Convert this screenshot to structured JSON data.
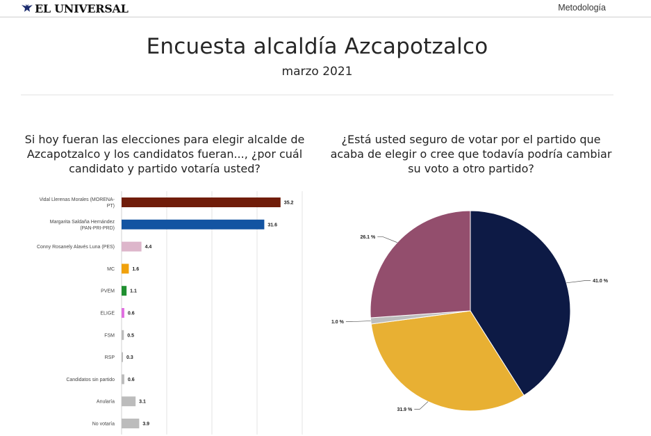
{
  "header": {
    "logo_text": "EL UNIVERSAL",
    "metodologia_link": "Metodología"
  },
  "title": "Encuesta alcaldía Azcapotzalco",
  "subtitle": "marzo 2021",
  "chart_data": [
    {
      "type": "bar",
      "orientation": "horizontal",
      "title": "Si hoy fueran las elecciones para elegir alcalde de Azcapotzalco y los candidatos fueran..., ¿por cuál candidato y partido votaría usted?",
      "categories": [
        [
          "Vidal Llerenas Morales (MORENA-",
          "PT)"
        ],
        [
          "Margarita Saldaña Hernández",
          "(PAN-PRI-PRD)"
        ],
        [
          "Conny Rosanely Alavés Luna (PES)"
        ],
        [
          "MC"
        ],
        [
          "PVEM"
        ],
        [
          "ELIGE"
        ],
        [
          "FSM"
        ],
        [
          "RSP"
        ],
        [
          "Candidatos sin partido"
        ],
        [
          "Anularía"
        ],
        [
          "No votaría"
        ]
      ],
      "values": [
        35.2,
        31.6,
        4.4,
        1.6,
        1.1,
        0.6,
        0.5,
        0.3,
        0.6,
        3.1,
        3.9
      ],
      "colors": [
        "#701d0a",
        "#1354a2",
        "#ddb6cb",
        "#f0a10c",
        "#1f8f2f",
        "#e06ee0",
        "#bcbcbc",
        "#bcbcbc",
        "#bcbcbc",
        "#bcbcbc",
        "#bcbcbc"
      ],
      "xlim": [
        0,
        40
      ],
      "grid": true
    },
    {
      "type": "pie",
      "title": "¿Está usted seguro de votar por el partido que acaba de elegir o cree que todavía podría cambiar su voto a otro partido?",
      "values": [
        41.0,
        31.9,
        1.0,
        26.1
      ],
      "labels": [
        "41.0 %",
        "31.9 %",
        "1.0 %",
        "26.1 %"
      ],
      "colors": [
        "#0d1a45",
        "#e8b033",
        "#bdbdbd",
        "#934e6d"
      ]
    }
  ]
}
